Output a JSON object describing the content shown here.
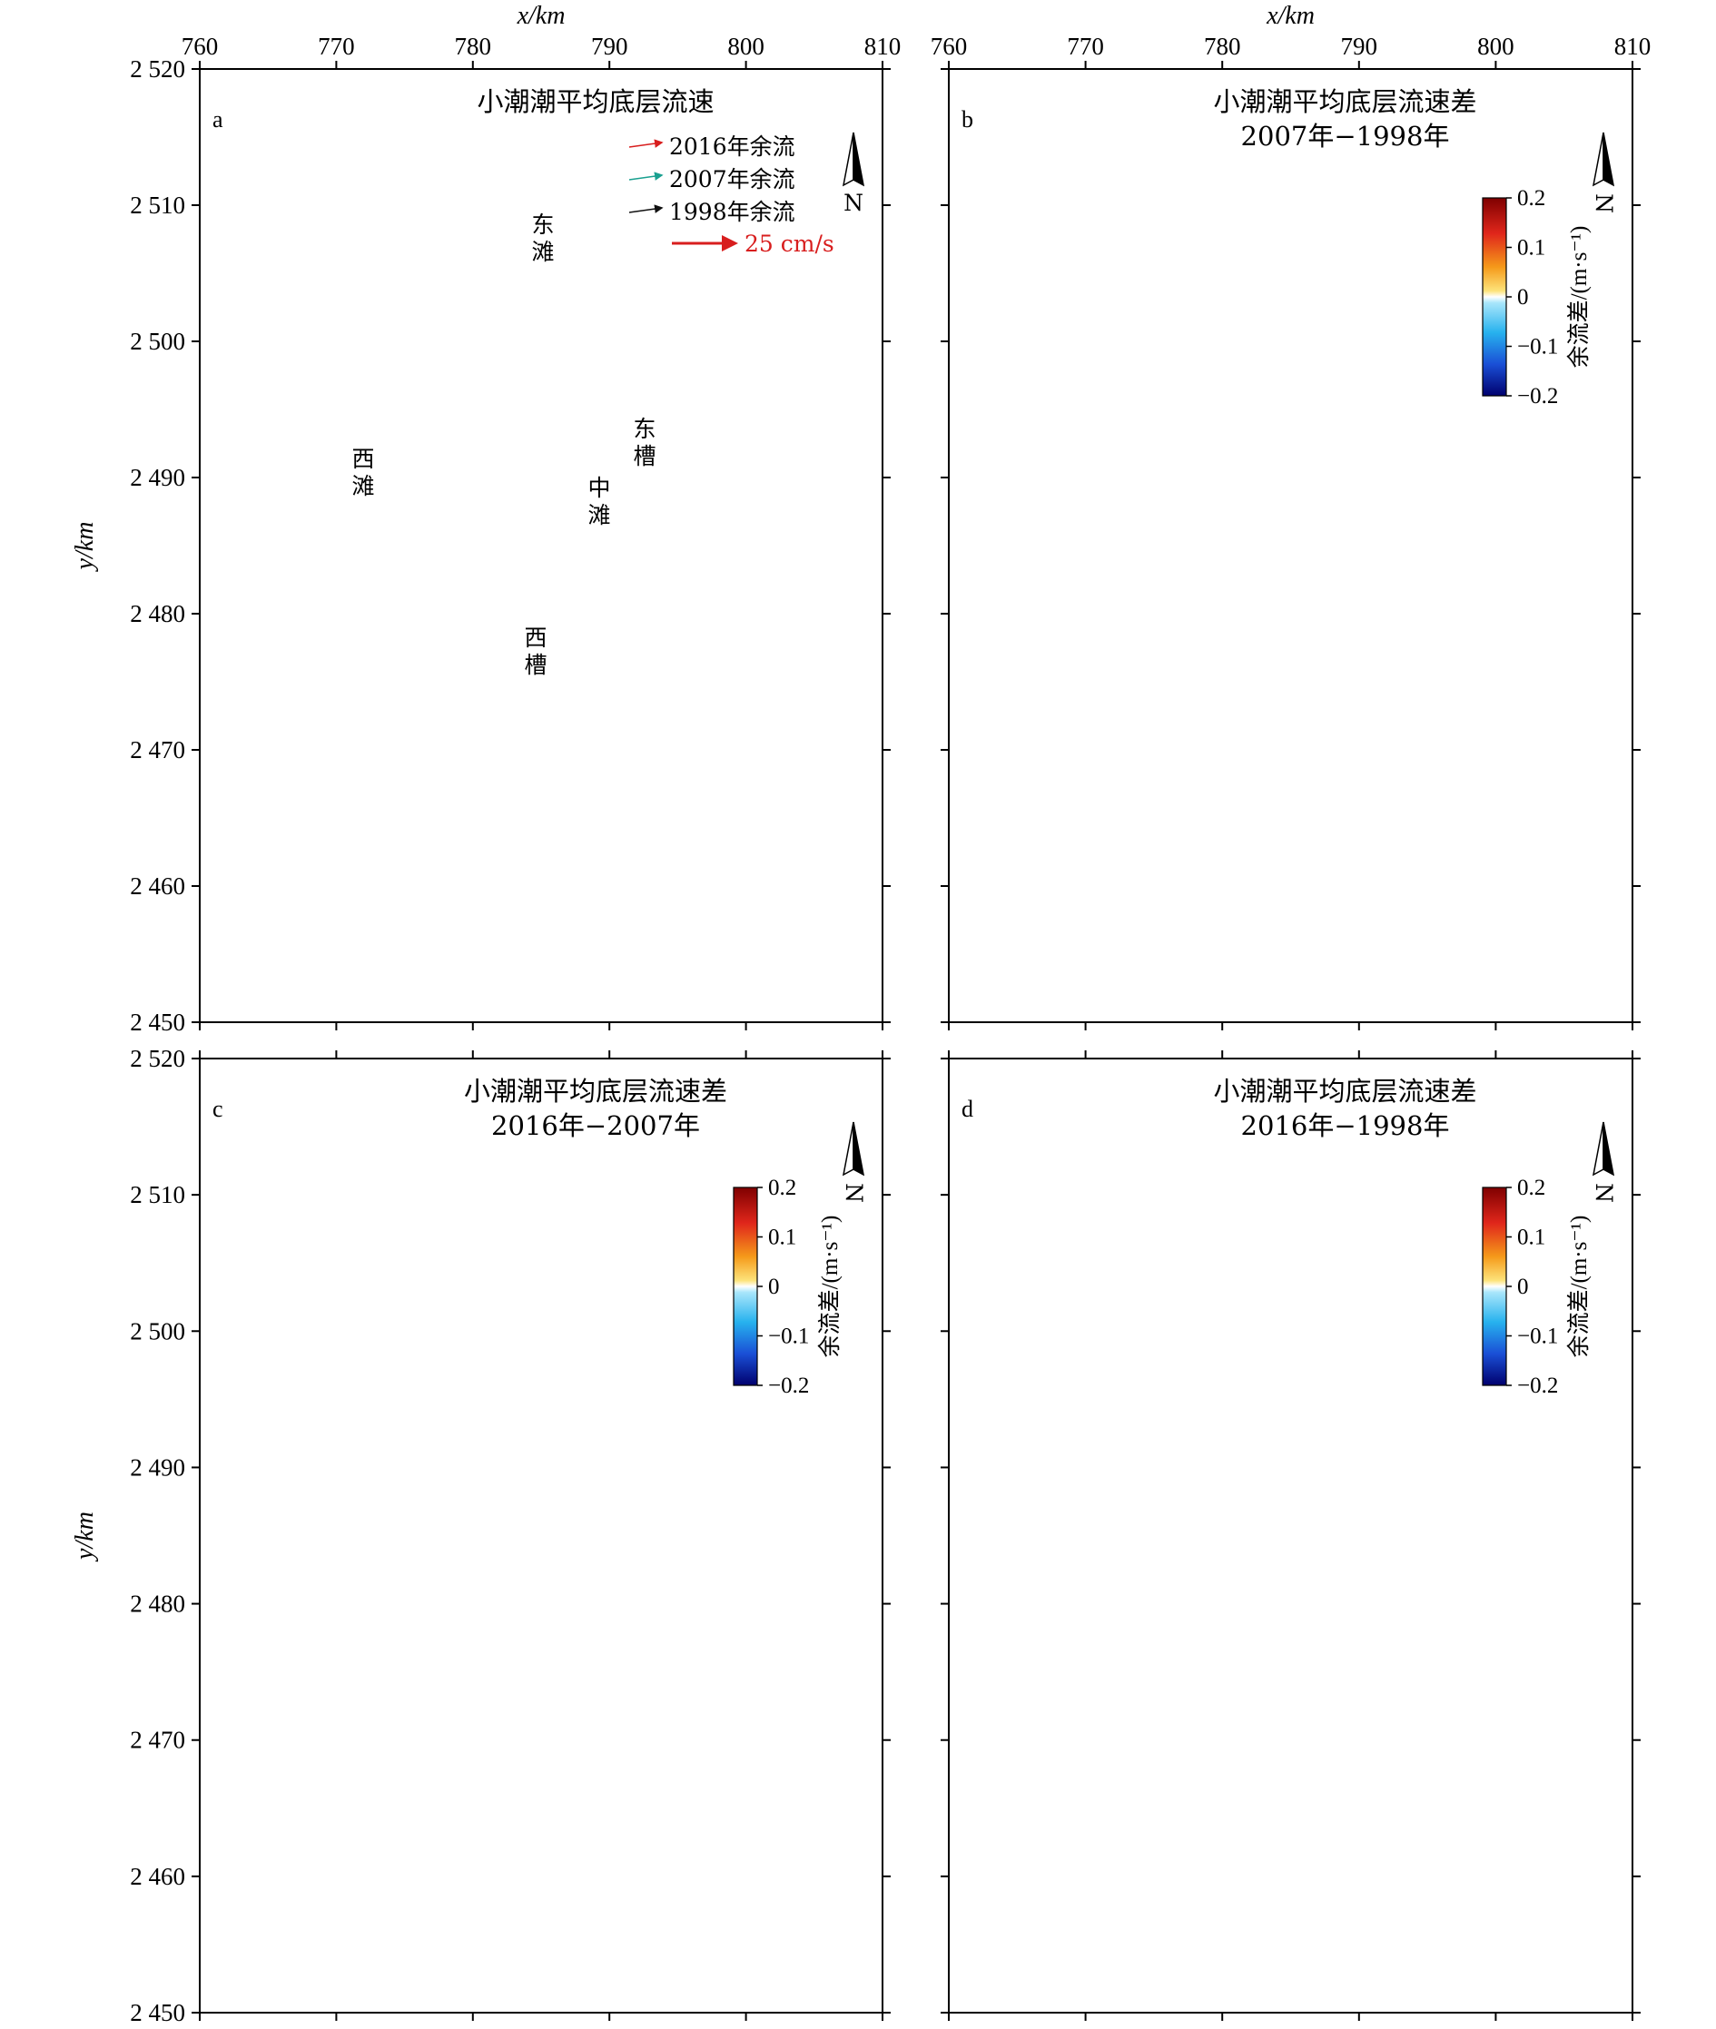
{
  "figure": {
    "x_axis_label": "x/km",
    "y_axis_label": "y/km",
    "x_ticks": [
      "760",
      "770",
      "780",
      "790",
      "800",
      "810"
    ],
    "y_ticks": [
      "2 520",
      "2 510",
      "2 500",
      "2 490",
      "2 480",
      "2 470",
      "2 460",
      "2 450"
    ],
    "x_range_km": [
      760,
      810
    ],
    "y_range_km": [
      2450,
      2520
    ],
    "colors": {
      "land": "#c6e29b",
      "shoal": "#f6b247",
      "channel": "#2f86e6",
      "positive_diff": "#f4b51a",
      "strong_positive_diff": "#b2110d",
      "negative_diff": "#29b6f0",
      "strong_negative_diff": "#1a3fc8",
      "vector_2016": "#d81e1e",
      "vector_2007": "#1aa090",
      "vector_1998": "#111111"
    }
  },
  "panels": [
    {
      "letter": "a",
      "title_line1": "小潮潮平均底层流速",
      "title_line2": "",
      "north_label": "N",
      "legend": {
        "items": [
          {
            "label": "2016年余流",
            "color": "#d81e1e"
          },
          {
            "label": "2007年余流",
            "color": "#1aa090"
          },
          {
            "label": "1998年余流",
            "color": "#111111"
          }
        ],
        "scale_label": "25 cm/s"
      },
      "map_labels": [
        {
          "id": "east-shoal",
          "text": "东滩"
        },
        {
          "id": "west-shoal",
          "text": "西滩"
        },
        {
          "id": "middle-shoal",
          "text": "中滩"
        },
        {
          "id": "east-channel",
          "text": "东槽"
        },
        {
          "id": "west-channel",
          "text": "西槽"
        }
      ]
    },
    {
      "letter": "b",
      "title_line1": "小潮潮平均底层流速差",
      "title_line2": "2007年−1998年",
      "north_label": "N",
      "colorbar": {
        "label": "余流差/(m·s⁻¹)",
        "ticks": [
          "0.2",
          "0.1",
          "0",
          "−0.1",
          "−0.2"
        ],
        "range": [
          -0.2,
          0.2
        ]
      }
    },
    {
      "letter": "c",
      "title_line1": "小潮潮平均底层流速差",
      "title_line2": "2016年−2007年",
      "north_label": "N",
      "colorbar": {
        "label": "余流差/(m·s⁻¹)",
        "ticks": [
          "0.2",
          "0.1",
          "0",
          "−0.1",
          "−0.2"
        ],
        "range": [
          -0.2,
          0.2
        ]
      }
    },
    {
      "letter": "d",
      "title_line1": "小潮潮平均底层流速差",
      "title_line2": "2016年−1998年",
      "north_label": "N",
      "colorbar": {
        "label": "余流差/(m·s⁻¹)",
        "ticks": [
          "0.2",
          "0.1",
          "0",
          "−0.1",
          "−0.2"
        ],
        "range": [
          -0.2,
          0.2
        ]
      }
    }
  ]
}
